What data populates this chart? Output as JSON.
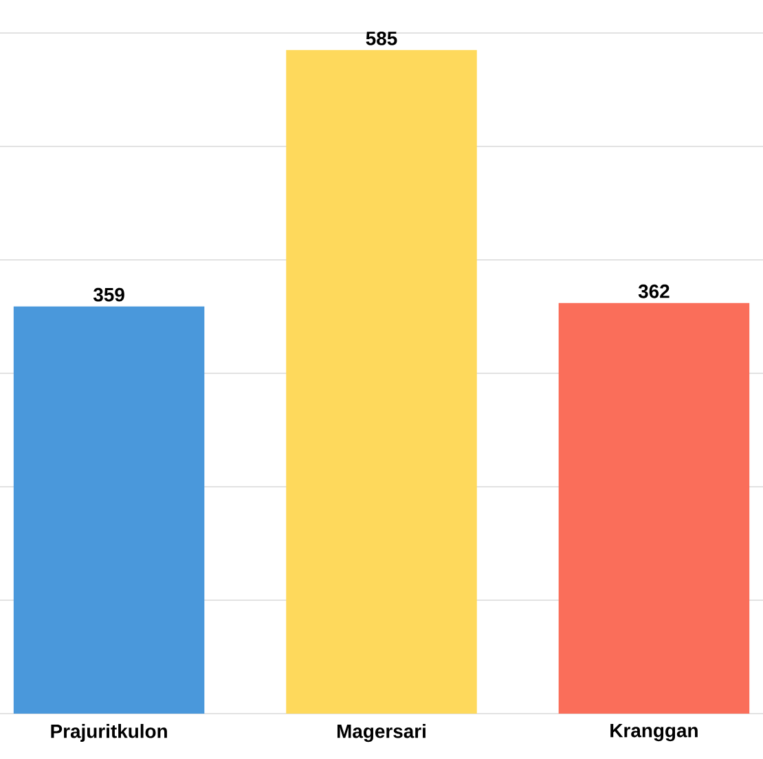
{
  "chart_data": {
    "type": "bar",
    "categories": [
      "Prajuritkulon",
      "Magersari",
      "Kranggan"
    ],
    "values": [
      359,
      585,
      362
    ],
    "colors": [
      "#4a98db",
      "#fed95c",
      "#fa6e5a"
    ],
    "ylim": [
      0,
      600
    ],
    "yticks": [
      {
        "value": 0,
        "label": null
      },
      {
        "value": 100,
        "label": null
      },
      {
        "value": 200,
        "label": null
      },
      {
        "value": 300,
        "label": null
      },
      {
        "value": 400,
        "label": null
      },
      {
        "value": 500,
        "label": null
      },
      {
        "value": 600,
        "label": null
      }
    ],
    "grid": "y",
    "tick_labels": "x",
    "data_labels": true
  }
}
